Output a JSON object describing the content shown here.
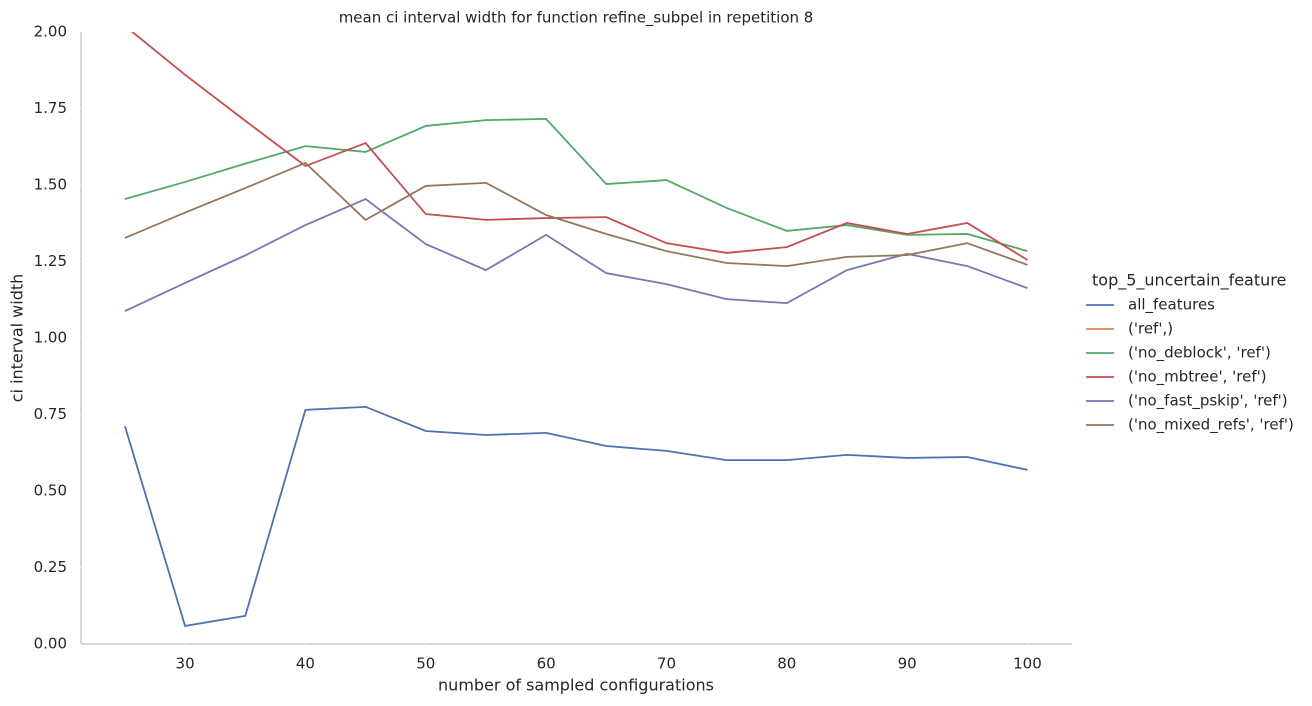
{
  "chart_data": {
    "type": "line",
    "title": "mean ci interval width for function refine_subpel in repetition 8",
    "xlabel": "number of sampled configurations",
    "ylabel": "ci interval width",
    "legend_title": "top_5_uncertain_feature",
    "x": [
      25,
      30,
      35,
      40,
      45,
      50,
      55,
      60,
      65,
      70,
      75,
      80,
      85,
      90,
      95,
      100
    ],
    "series": [
      {
        "name": "all_features",
        "color": "#4c72b0",
        "values": [
          0.712,
          0.059,
          0.092,
          0.765,
          0.775,
          0.696,
          0.683,
          0.69,
          0.647,
          0.631,
          0.601,
          0.601,
          0.618,
          0.608,
          0.611,
          0.569
        ]
      },
      {
        "name": "('ref',)",
        "color": "#dd8452",
        "values": [
          null,
          null,
          null,
          null,
          null,
          null,
          null,
          null,
          null,
          null,
          null,
          null,
          null,
          null,
          null,
          null
        ]
      },
      {
        "name": "('no_deblock', 'ref')",
        "color": "#55a868",
        "values": [
          1.454,
          1.51,
          1.57,
          1.627,
          1.608,
          1.693,
          1.712,
          1.716,
          1.503,
          1.516,
          1.425,
          1.35,
          1.369,
          1.337,
          1.34,
          1.284
        ]
      },
      {
        "name": "('no_mbtree', 'ref')",
        "color": "#c44e52",
        "values": [
          2.02,
          1.86,
          1.71,
          1.562,
          1.637,
          1.405,
          1.386,
          1.392,
          1.395,
          1.31,
          1.278,
          1.297,
          1.376,
          1.34,
          1.376,
          1.255
        ]
      },
      {
        "name": "('no_fast_pskip', 'ref')",
        "color": "#8172b3",
        "values": [
          1.088,
          1.18,
          1.27,
          1.369,
          1.454,
          1.307,
          1.222,
          1.337,
          1.212,
          1.176,
          1.127,
          1.114,
          1.222,
          1.275,
          1.235,
          1.163
        ]
      },
      {
        "name": "('no_mixed_refs', 'ref')",
        "color": "#937860",
        "values": [
          1.327,
          1.41,
          1.49,
          1.572,
          1.386,
          1.497,
          1.507,
          1.402,
          1.34,
          1.284,
          1.245,
          1.235,
          1.265,
          1.271,
          1.31,
          1.239
        ]
      }
    ],
    "xlim": [
      21.35,
      103.7
    ],
    "ylim": [
      0,
      2
    ],
    "xticks": [
      30,
      40,
      50,
      60,
      70,
      80,
      90,
      100
    ],
    "yticks": [
      {
        "value": 0,
        "label": "0.00"
      },
      {
        "value": 0.25,
        "label": "0.25"
      },
      {
        "value": 0.5,
        "label": "0.50"
      },
      {
        "value": 0.75,
        "label": "0.75"
      },
      {
        "value": 1,
        "label": "1.00"
      },
      {
        "value": 1.25,
        "label": "1.25"
      },
      {
        "value": 1.5,
        "label": "1.50"
      },
      {
        "value": 1.75,
        "label": "1.75"
      },
      {
        "value": 2,
        "label": "2.00"
      }
    ],
    "grid": false,
    "legend_position": "right"
  }
}
